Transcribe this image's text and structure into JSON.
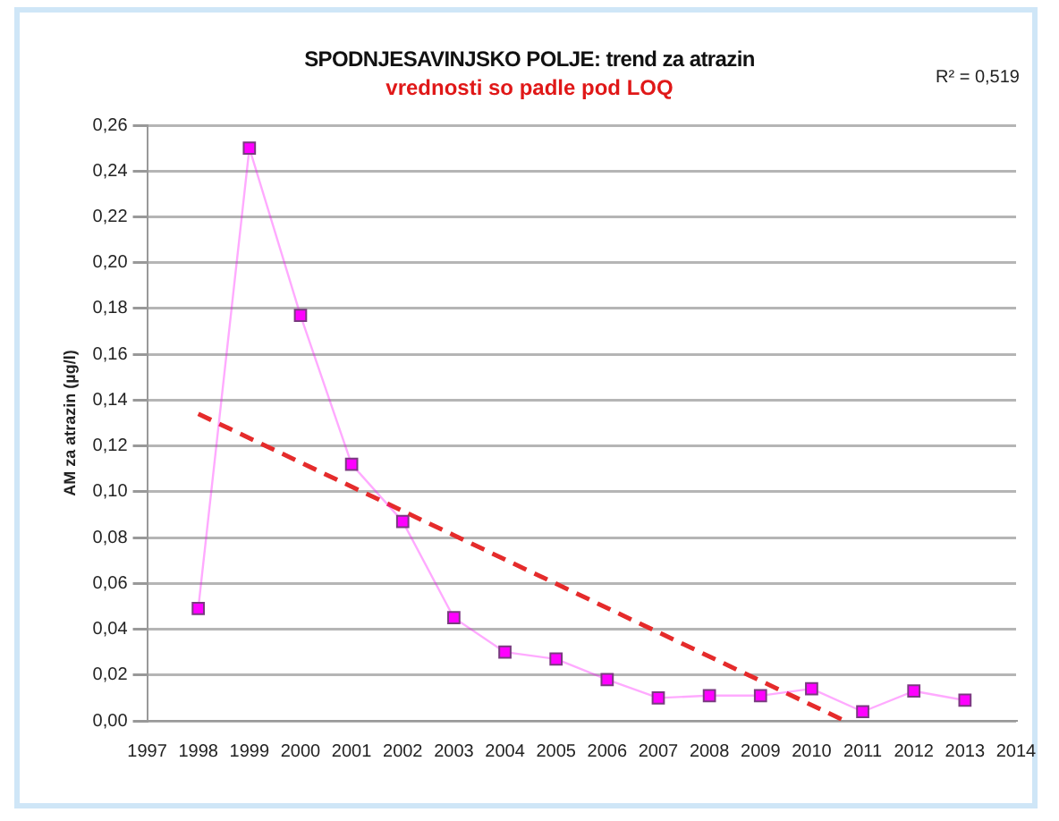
{
  "chart_data": {
    "type": "line",
    "title": "SPODNJESAVINJSKO POLJE: trend za atrazin",
    "subtitle": "vrednosti so padle pod LOQ",
    "ylabel": "AM za atrazin (µg/l)",
    "annotations": [
      "R² = 0,519"
    ],
    "x": [
      1998,
      1999,
      2000,
      2001,
      2002,
      2003,
      2004,
      2005,
      2006,
      2007,
      2008,
      2009,
      2010,
      2011,
      2012,
      2013
    ],
    "series": [
      {
        "color": "#ff00ff",
        "marker": "square",
        "values": [
          0.049,
          0.25,
          0.177,
          0.112,
          0.087,
          0.045,
          0.03,
          0.027,
          0.018,
          0.01,
          0.011,
          0.011,
          0.014,
          0.004,
          0.013,
          0.009
        ]
      },
      {
        "color": "#e52b2b",
        "marker": "none",
        "line_style": "dashed",
        "x": [
          1998,
          2010.65
        ],
        "values": [
          0.134,
          0
        ]
      }
    ],
    "xlim": [
      1997,
      2014
    ],
    "xticks": [
      1997,
      1998,
      1999,
      2000,
      2001,
      2002,
      2003,
      2004,
      2005,
      2006,
      2007,
      2008,
      2009,
      2010,
      2011,
      2012,
      2013,
      2014
    ],
    "ylim": [
      0,
      0.26
    ],
    "yticks": [
      {
        "value": 0,
        "label": "0,00"
      },
      {
        "value": 0.02,
        "label": "0,02"
      },
      {
        "value": 0.04,
        "label": "0,04"
      },
      {
        "value": 0.06,
        "label": "0,06"
      },
      {
        "value": 0.08,
        "label": "0,08"
      },
      {
        "value": 0.1,
        "label": "0,10"
      },
      {
        "value": 0.12,
        "label": "0,12"
      },
      {
        "value": 0.14,
        "label": "0,14"
      },
      {
        "value": 0.16,
        "label": "0,16"
      },
      {
        "value": 0.18,
        "label": "0,18"
      },
      {
        "value": 0.2,
        "label": "0,20"
      },
      {
        "value": 0.22,
        "label": "0,22"
      },
      {
        "value": 0.24,
        "label": "0,24"
      },
      {
        "value": 0.26,
        "label": "0,26"
      }
    ],
    "grid": "y",
    "legend": false
  }
}
